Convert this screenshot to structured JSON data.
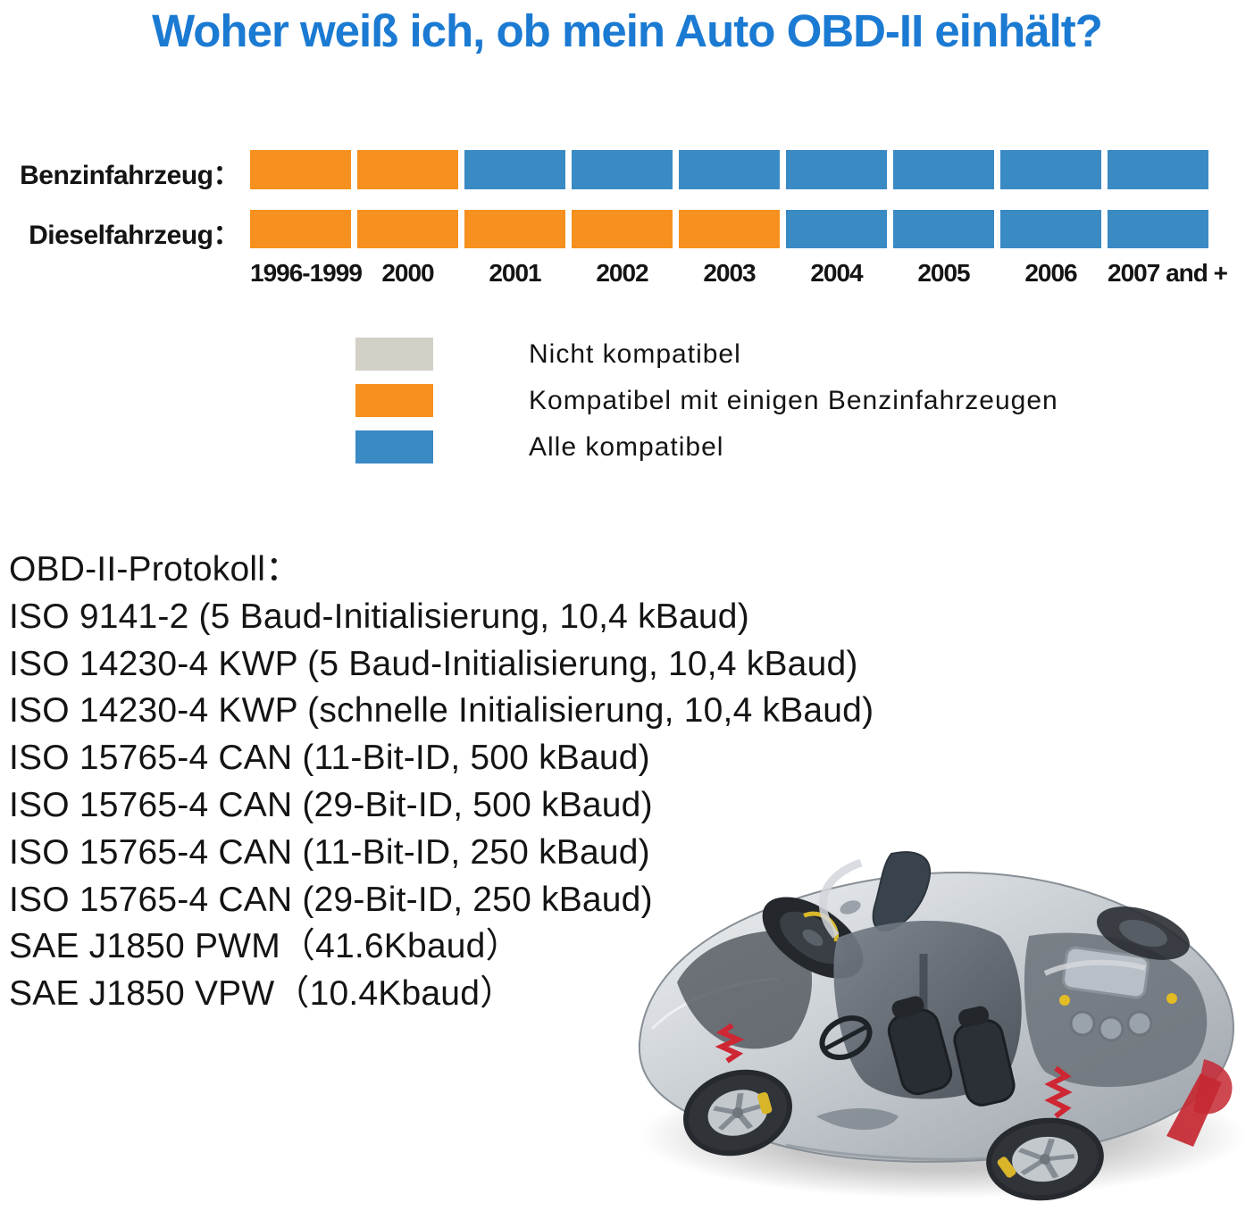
{
  "title": "Woher weiß ich, ob mein Auto OBD-II einhält?",
  "chart_data": {
    "type": "heatmap",
    "title": "OBD-II compatibility by vehicle type and model year",
    "categories": [
      "1996-1999",
      "2000",
      "2001",
      "2002",
      "2003",
      "2004",
      "2005",
      "2006",
      "2007 and +"
    ],
    "rows": [
      {
        "label": "Benzinfahrzeug：",
        "values": [
          "some",
          "some",
          "all",
          "all",
          "all",
          "all",
          "all",
          "all",
          "all"
        ]
      },
      {
        "label": "Dieselfahrzeug：",
        "values": [
          "some",
          "some",
          "some",
          "some",
          "some",
          "all",
          "all",
          "all",
          "all"
        ]
      }
    ],
    "value_colors": {
      "none": "#d3d0c8",
      "some": "#f6901e",
      "all": "#3a8ac4"
    },
    "legend": [
      {
        "key": "none",
        "label": "Nicht kompatibel"
      },
      {
        "key": "some",
        "label": "Kompatibel mit einigen Benzinfahrzeugen"
      },
      {
        "key": "all",
        "label": "Alle kompatibel"
      }
    ],
    "legend_position": "below",
    "grid": false
  },
  "protocols": {
    "heading": "OBD-II-Protokoll：",
    "items": [
      "ISO 9141-2 (5 Baud-Initialisierung, 10,4 kBaud)",
      "ISO 14230-4 KWP (5 Baud-Initialisierung, 10,4 kBaud)",
      "ISO 14230-4 KWP (schnelle Initialisierung, 10,4 kBaud)",
      "ISO 15765-4 CAN (11-Bit-ID, 500 kBaud)",
      "ISO 15765-4 CAN (29-Bit-ID, 500 kBaud)",
      "ISO 15765-4 CAN (11-Bit-ID, 250 kBaud)",
      "ISO 15765-4 CAN (29-Bit-ID, 250 kBaud)",
      "SAE J1850 PWM（41.6Kbaud）",
      "SAE J1850 VPW（10.4Kbaud）"
    ]
  },
  "car_image": {
    "alt": "Cutaway illustration of a silver sports car showing interior, wheels and engine"
  },
  "colors": {
    "title_blue": "#1b7ad2",
    "bar_orange": "#f6901e",
    "bar_blue": "#3a8ac4",
    "legend_gray": "#d3d0c8",
    "text_black": "#141414"
  }
}
